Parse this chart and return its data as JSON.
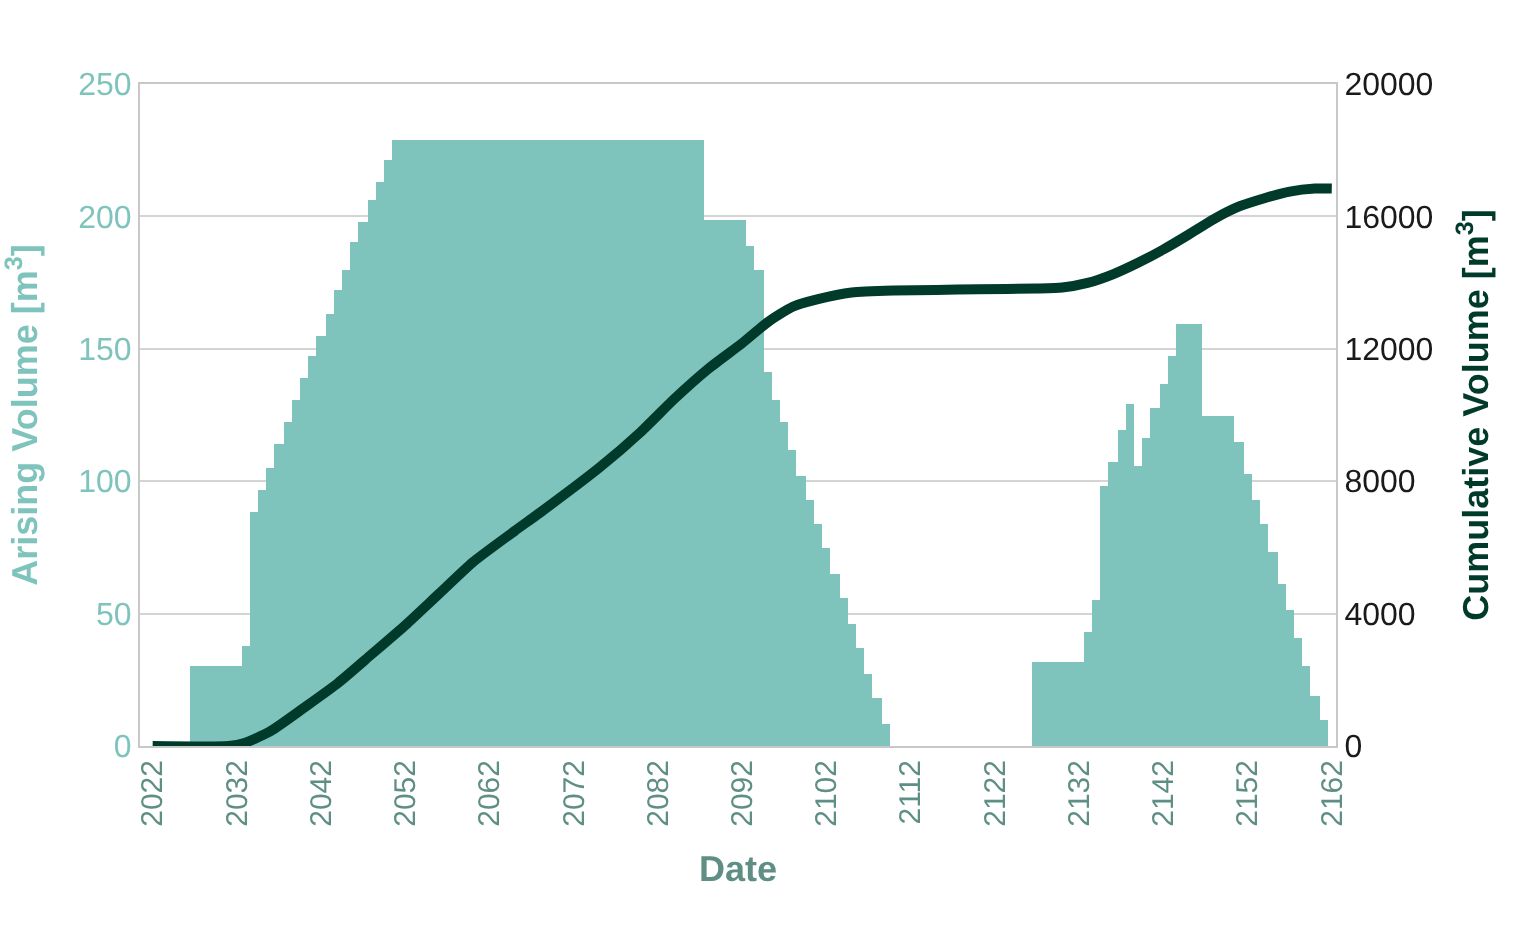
{
  "chart_data": {
    "type": "bar",
    "xlabel": "Date",
    "ylabel": "Arising Volume [m$^{3}$]",
    "y2label": "Cumulative Volume [m$^{3}$]",
    "xlim": [
      2020.5,
      2162.5
    ],
    "xticks": [
      2022,
      2032,
      2042,
      2052,
      2062,
      2072,
      2082,
      2092,
      2102,
      2112,
      2122,
      2132,
      2142,
      2152,
      2162
    ],
    "ylim": [
      0,
      250
    ],
    "yticks": [
      0,
      50,
      100,
      150,
      200,
      250
    ],
    "y2lim": [
      0,
      20000
    ],
    "y2ticks": [
      0,
      4000,
      8000,
      12000,
      16000,
      20000
    ],
    "grid": "y",
    "series": [
      {
        "color": "#7fc4bc",
        "x": [
          2022,
          2023,
          2024,
          2025,
          2026,
          2027,
          2028,
          2029,
          2030,
          2031,
          2032,
          2033,
          2034,
          2035,
          2036,
          2037,
          2038,
          2039,
          2040,
          2041,
          2042,
          2043,
          2044,
          2045,
          2046,
          2047,
          2048,
          2049,
          2050,
          2051,
          2052,
          2053,
          2054,
          2055,
          2056,
          2057,
          2058,
          2059,
          2060,
          2061,
          2062,
          2063,
          2064,
          2065,
          2066,
          2067,
          2068,
          2069,
          2070,
          2071,
          2072,
          2073,
          2074,
          2075,
          2076,
          2077,
          2078,
          2079,
          2080,
          2081,
          2082,
          2083,
          2084,
          2085,
          2086,
          2087,
          2088,
          2089,
          2090,
          2091,
          2092,
          2093,
          2094,
          2095,
          2096,
          2097,
          2098,
          2099,
          2100,
          2101,
          2102,
          2103,
          2104,
          2105,
          2106,
          2107,
          2108,
          2109,
          2110,
          2111,
          2112,
          2113,
          2114,
          2115,
          2116,
          2117,
          2118,
          2119,
          2120,
          2121,
          2122,
          2123,
          2124,
          2125,
          2126,
          2127,
          2128,
          2129,
          2130,
          2131,
          2132,
          2133,
          2134,
          2135,
          2136,
          2137,
          2138,
          2139,
          2140,
          2141,
          2142,
          2143,
          2144,
          2145,
          2146,
          2147,
          2148,
          2149,
          2150,
          2151,
          2152,
          2153,
          2154,
          2155,
          2156,
          2157,
          2158,
          2159,
          2160,
          2161
        ],
        "values": [
          0,
          0,
          0,
          0,
          0,
          30,
          30,
          30,
          30,
          30,
          30,
          38,
          88,
          97,
          105,
          114,
          122,
          131,
          139,
          147,
          155,
          163,
          172,
          180,
          190,
          198,
          206,
          213,
          221,
          229,
          229,
          229,
          229,
          229,
          229,
          229,
          229,
          229,
          229,
          229,
          229,
          229,
          229,
          229,
          229,
          229,
          229,
          229,
          229,
          229,
          229,
          229,
          229,
          229,
          229,
          229,
          229,
          229,
          229,
          229,
          229,
          229,
          229,
          229,
          229,
          229,
          199,
          199,
          199,
          199,
          199,
          189,
          180,
          141,
          131,
          122,
          112,
          102,
          93,
          84,
          75,
          65,
          56,
          46,
          37,
          27,
          18,
          8,
          0,
          0,
          0,
          0,
          0,
          0,
          0,
          0,
          0,
          0,
          0,
          0,
          0,
          0,
          0,
          0,
          0,
          32,
          32,
          32,
          32,
          32,
          32,
          43,
          55,
          98,
          107,
          119,
          129,
          106,
          116,
          128,
          137,
          147,
          159,
          159,
          159,
          125,
          125,
          125,
          125,
          115,
          103,
          93,
          84,
          73,
          61,
          51,
          41,
          30,
          19,
          10
        ]
      },
      {
        "type": "line",
        "axis": "y2",
        "color": "#003a2a",
        "x": [
          2022,
          2031,
          2033,
          2036,
          2040,
          2044,
          2048,
          2052,
          2056,
          2060,
          2065,
          2068,
          2075,
          2080,
          2084,
          2088,
          2092,
          2095,
          2098,
          2101,
          2105,
          2110,
          2115,
          2120,
          2127,
          2130,
          2133,
          2136,
          2139,
          2142,
          2145,
          2148,
          2151,
          2154,
          2157,
          2160,
          2162
        ],
        "values": [
          0,
          0,
          100,
          450,
          1160,
          1900,
          2770,
          3650,
          4600,
          5550,
          6500,
          7050,
          8400,
          9500,
          10500,
          11400,
          12170,
          12800,
          13270,
          13500,
          13700,
          13760,
          13780,
          13800,
          13820,
          13850,
          13990,
          14250,
          14600,
          15000,
          15450,
          15920,
          16300,
          16550,
          16750,
          16840,
          16840
        ]
      }
    ]
  }
}
